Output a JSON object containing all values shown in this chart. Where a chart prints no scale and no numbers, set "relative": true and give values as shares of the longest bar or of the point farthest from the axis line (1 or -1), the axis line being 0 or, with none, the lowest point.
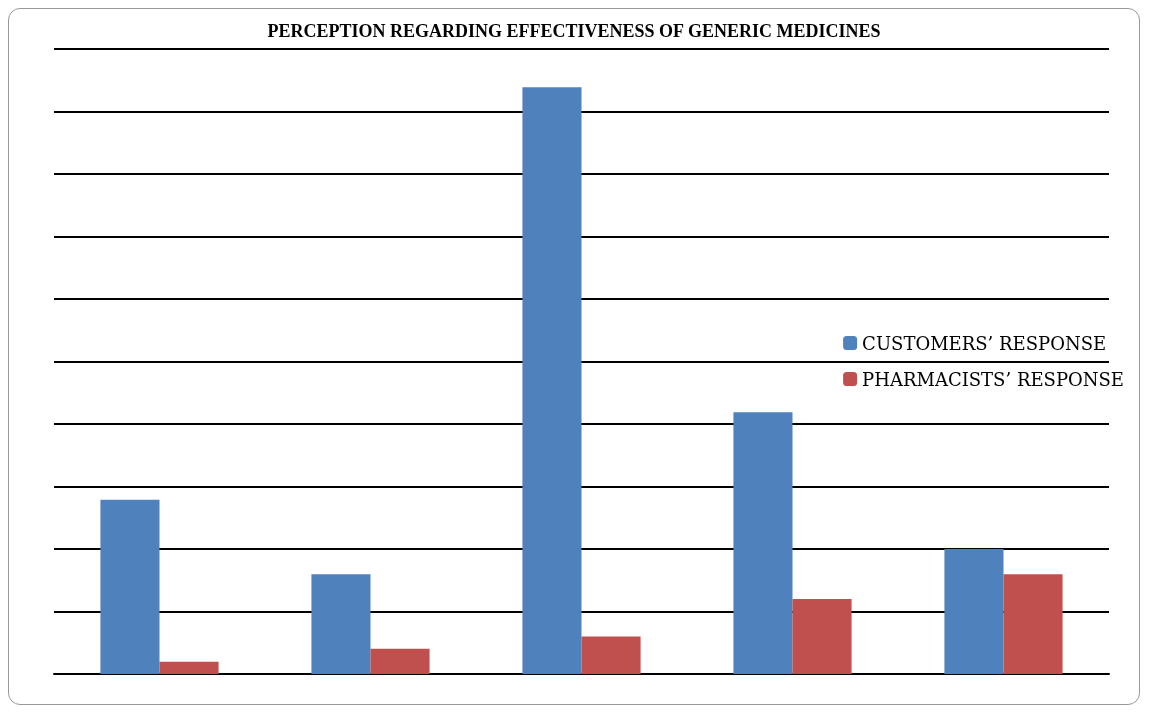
{
  "chart_data": {
    "type": "bar",
    "title": "PERCEPTION REGARDING EFFECTIVENESS OF GENERIC MEDICINES",
    "relative": true,
    "categories": [
      null,
      null,
      null,
      null,
      null
    ],
    "series": [
      {
        "name": "CUSTOMERS’ RESPONSE",
        "color": "#4f81bd",
        "values": [
          0.297,
          0.17,
          1,
          0.446,
          0.213
        ]
      },
      {
        "name": "PHARMACISTS’ RESPONSE",
        "color": "#c0504d",
        "values": [
          0.021,
          0.043,
          0.064,
          0.128,
          0.17
        ]
      }
    ],
    "grid": "y",
    "legend": "right"
  }
}
